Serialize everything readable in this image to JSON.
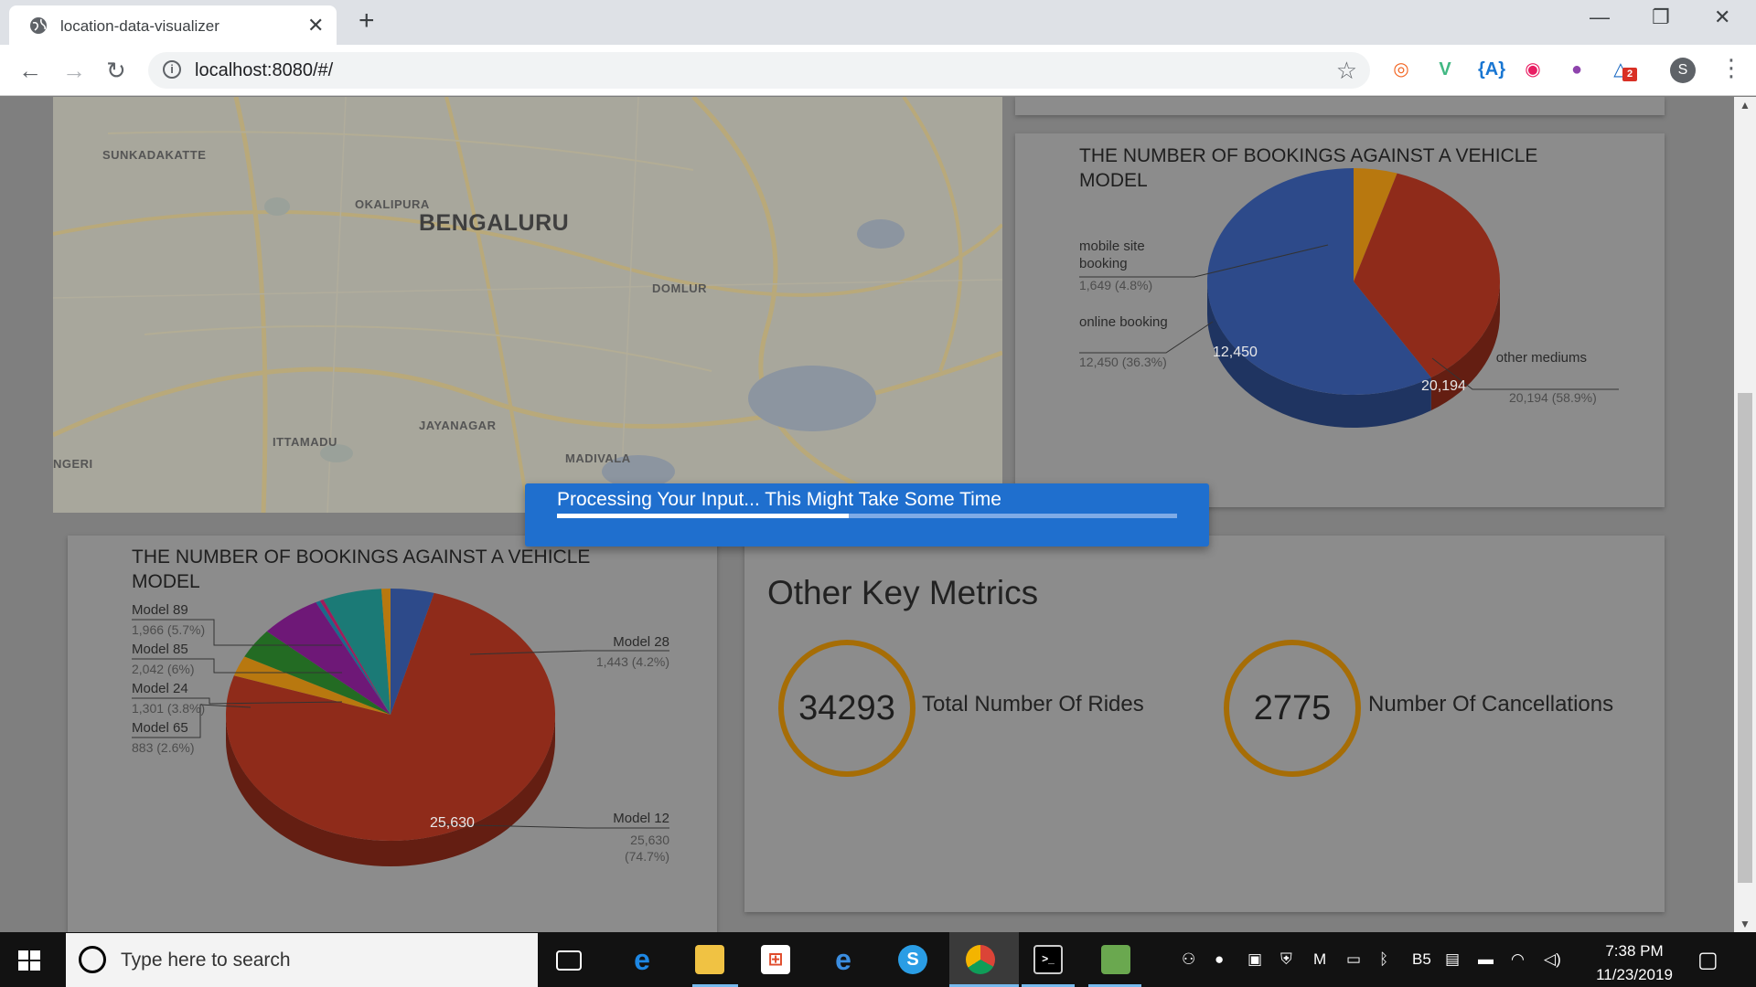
{
  "browser": {
    "tab_title": "location-data-visualizer",
    "tab_close": "✕",
    "new_tab": "+",
    "win_min": "—",
    "win_max": "❐",
    "win_close": "✕",
    "back": "←",
    "forward": "→",
    "reload": "↻",
    "info_glyph": "i",
    "url": "localhost:8080/#/",
    "star": "☆",
    "menu": "⋮",
    "profile_initial": "S",
    "extensions": [
      {
        "name": "ext-orange-icon",
        "glyph": "◎",
        "color": "#f26522"
      },
      {
        "name": "ext-vue-icon",
        "glyph": "V",
        "color": "#41b883"
      },
      {
        "name": "ext-angular-icon",
        "glyph": "{A}",
        "color": "#1976d2"
      },
      {
        "name": "ext-pink-icon",
        "glyph": "◉",
        "color": "#e91e63"
      },
      {
        "name": "ext-colorful-icon",
        "glyph": "●",
        "color": "#8e44ad"
      },
      {
        "name": "ext-drive-icon",
        "glyph": "△",
        "color": "#1565c0",
        "badge": "2"
      }
    ]
  },
  "map": {
    "labels": [
      {
        "text": "SUNKADAKATTE",
        "size": "small"
      },
      {
        "text": "OKALIPURA",
        "size": "small"
      },
      {
        "text": "BENGALURU",
        "size": "large"
      },
      {
        "text": "DOMLUR",
        "size": "small"
      },
      {
        "text": "JAYANAGAR",
        "size": "small"
      },
      {
        "text": "ITTAMADU",
        "size": "small"
      },
      {
        "text": "MADIVALA",
        "size": "small"
      },
      {
        "text": "NGERI",
        "size": "small"
      }
    ]
  },
  "charts": {
    "medium": {
      "title": "THE NUMBER OF BOOKINGS AGAINST A VEHICLE MODEL"
    },
    "model": {
      "title": "THE NUMBER OF BOOKINGS AGAINST A VEHICLE MODEL"
    }
  },
  "chart_data": [
    {
      "type": "pie",
      "title": "THE NUMBER OF BOOKINGS AGAINST A VEHICLE MODEL",
      "series": [
        {
          "name": "mobile site booking",
          "value": 1649,
          "label": "1,649 (4.8%)",
          "color": "#b8780f"
        },
        {
          "name": "online booking",
          "value": 12450,
          "label": "12,450 (36.3%)",
          "color": "#8f2b1a"
        },
        {
          "name": "other mediums",
          "value": 20194,
          "label": "20,194 (58.9%)",
          "color": "#2d4a8a"
        }
      ],
      "inside_labels": [
        "12,450",
        "20,194"
      ]
    },
    {
      "type": "pie",
      "title": "THE NUMBER OF BOOKINGS AGAINST A VEHICLE MODEL",
      "series": [
        {
          "name": "Model 28",
          "value": 1443,
          "label": "1,443 (4.2%)",
          "color": "#2d4a8a"
        },
        {
          "name": "Model 12",
          "value": 25630,
          "label": "25,630 (74.7%)",
          "color": "#8f2b1a"
        },
        {
          "name": "Model 65",
          "value": 883,
          "label": "883 (2.6%)",
          "color": "#b8780f"
        },
        {
          "name": "Model 24",
          "value": 1301,
          "label": "1,301 (3.8%)",
          "color": "#236b23"
        },
        {
          "name": "Model 85",
          "value": 2042,
          "label": "2,042 (6%)",
          "color": "#6e1877"
        },
        {
          "name": "",
          "value": 150,
          "label": "",
          "color": "#1a6a8a"
        },
        {
          "name": "",
          "value": 120,
          "label": "",
          "color": "#a11c5a"
        },
        {
          "name": "Model 89",
          "value": 1966,
          "label": "1,966 (5.7%)",
          "color": "#1b7a76"
        },
        {
          "name": "",
          "value": 300,
          "label": "",
          "color": "#b8780f"
        }
      ],
      "inside_labels": [
        "25,630"
      ]
    }
  ],
  "metrics": {
    "title": "Other Key Metrics",
    "rides_value": "34293",
    "rides_label": "Total Number Of Rides",
    "cancel_value": "2775",
    "cancel_label": "Number Of Cancellations",
    "ring_color": "#a66d06"
  },
  "modal": {
    "message": "Processing Your Input... This Might Take Some Time",
    "progress": 0.47
  },
  "taskbar": {
    "search_placeholder": "Type here to search",
    "time": "7:38 PM",
    "date": "11/23/2019",
    "notification": "▢",
    "tray_icons": [
      "people-icon",
      "chrome-small-icon",
      "network-blue-icon",
      "shield-icon",
      "mcafee-icon",
      "display-icon",
      "bluetooth-icon",
      "b5-icon",
      "printer-icon",
      "battery-icon",
      "wifi-icon",
      "volume-icon"
    ],
    "tray_glyphs": [
      "⚇",
      "●",
      "▣",
      "⛨",
      "M",
      "▭",
      "ᛒ",
      "B5",
      "▤",
      "▬",
      "◠",
      "◁)"
    ]
  }
}
